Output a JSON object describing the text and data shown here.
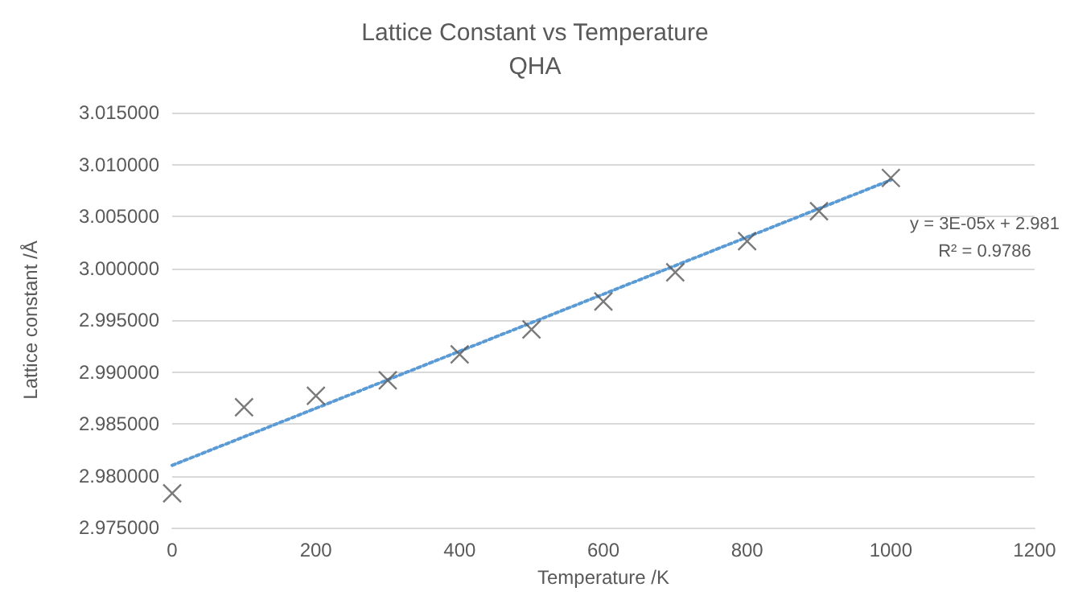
{
  "chart_data": {
    "type": "scatter",
    "title": "Lattice Constant vs Temperature",
    "subtitle": "QHA",
    "xlabel": "Temperature /K",
    "ylabel": "Lattice constant /Å",
    "x": [
      0,
      100,
      200,
      300,
      400,
      500,
      600,
      700,
      800,
      900,
      1000
    ],
    "series": [
      {
        "color": "#595959",
        "marker": "cross",
        "values": [
          2.9783,
          2.9866,
          2.9877,
          2.9892,
          2.9917,
          2.9941,
          2.9968,
          2.9996,
          3.0026,
          3.0055,
          3.0087
        ]
      },
      {
        "type": "line",
        "color": "#5b9bd5",
        "line_style": "dotted",
        "marker": "none",
        "x": [
          0,
          1000
        ],
        "values": [
          2.981,
          3.0085
        ]
      }
    ],
    "xlim": [
      0,
      1200
    ],
    "xticks": [
      0,
      200,
      400,
      600,
      800,
      1000,
      1200
    ],
    "ylim": [
      2.975,
      3.015
    ],
    "yticks": [
      {
        "value": 2.975,
        "label": "2.975000"
      },
      {
        "value": 2.98,
        "label": "2.980000"
      },
      {
        "value": 2.985,
        "label": "2.985000"
      },
      {
        "value": 2.99,
        "label": "2.990000"
      },
      {
        "value": 2.995,
        "label": "2.995000"
      },
      {
        "value": 3.0,
        "label": "3.000000"
      },
      {
        "value": 3.005,
        "label": "3.005000"
      },
      {
        "value": 3.01,
        "label": "3.010000"
      },
      {
        "value": 3.015,
        "label": "3.015000"
      }
    ],
    "grid": "y",
    "annotations": [
      "y = 3E-05x + 2.981",
      "R² = 0.9786"
    ]
  }
}
